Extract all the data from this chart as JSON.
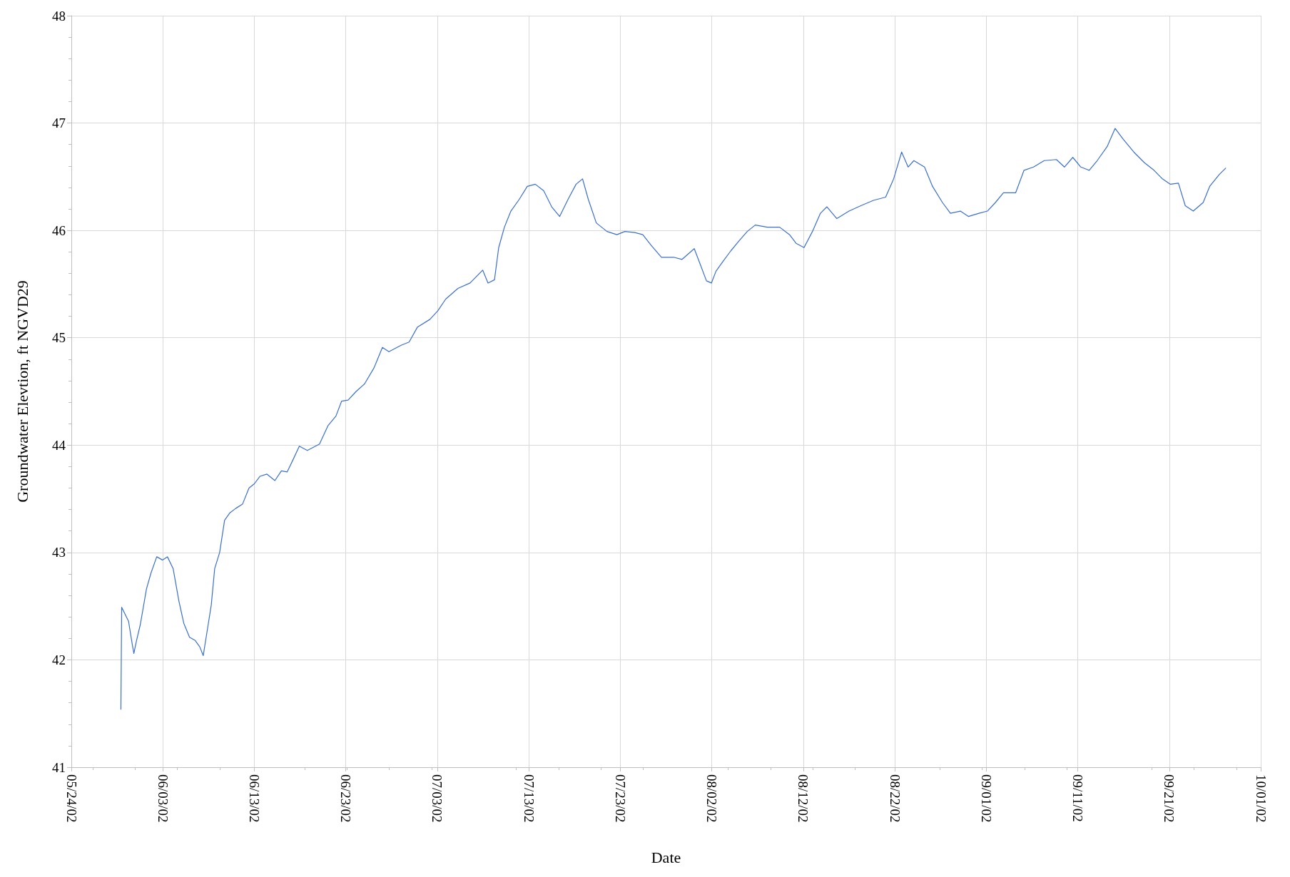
{
  "chart_data": {
    "type": "line",
    "xlabel": "Date",
    "ylabel": "Groundwater Elevtion, ft NGVD29",
    "x": [
      "--05-29T10:00",
      "--05-29T12:00",
      "--05-30T06:00",
      "--05-30T16:00",
      "--05-30T20:00",
      "--05-31T03:00",
      "--05-31T13:00",
      "--06-01T05:00",
      "--06-01T17:00",
      "--06-02T08:00",
      "--06-02T23:00",
      "--06-03T12:00",
      "--06-04T03:00",
      "--06-04T18:00",
      "--06-05T07:00",
      "--06-05T22:00",
      "--06-06T13:00",
      "--06-07T01:00",
      "--06-07T10:00",
      "--06-07T23:00",
      "--06-08T07:00",
      "--06-08T16:00",
      "--06-09T05:00",
      "--06-09T18:00",
      "--06-10T08:00",
      "--06-10T23:00",
      "--06-11T17:00",
      "--06-12T10:00",
      "--06-13T00:00",
      "--06-13T15:00",
      "--06-14T09:00",
      "--06-15T06:00",
      "--06-15T23:00",
      "--06-16T14:00",
      "--06-17T05:00",
      "--06-17T22:00",
      "--06-18T19:00",
      "--06-20T03:00",
      "--06-21T01:00",
      "--06-21T22:00",
      "--06-22T13:00",
      "--06-23T06:00",
      "--06-24T03:00",
      "--06-25T01:00",
      "--06-26T02:00",
      "--06-27T00:00",
      "--06-27T17:00",
      "--06-29T01:00",
      "--06-29T22:00",
      "--06-30T20:00",
      "--07-02T04:00",
      "--07-03T01:00",
      "--07-03T22:00",
      "--07-05T06:00",
      "--07-06T14:00",
      "--07-07T23:00",
      "--07-08T13:00",
      "--07-09T06:00",
      "--07-09T17:00",
      "--07-10T08:00",
      "--07-11T01:00",
      "--07-11T23:00",
      "--07-12T20:00",
      "--07-13T17:00",
      "--07-14T15:00",
      "--07-15T12:00",
      "--07-16T09:00",
      "--07-17T07:00",
      "--07-18T04:00",
      "--07-18T21:00",
      "--07-19T12:00",
      "--07-20T09:00",
      "--07-21T13:00",
      "--07-22T15:00",
      "--07-23T12:00",
      "--07-24T14:00",
      "--07-25T11:00",
      "--07-26T09:00",
      "--07-27T12:00",
      "--07-28T20:00",
      "--07-29T18:00",
      "--07-31T02:00",
      "--07-31T17:00",
      "--08-01T10:00",
      "--08-01T23:00",
      "--08-02T11:00",
      "--08-03T05:00",
      "--08-04T02:00",
      "--08-04T23:00",
      "--08-05T21:00",
      "--08-06T18:00",
      "--08-08T02:00",
      "--08-09T10:00",
      "--08-10T12:00",
      "--08-11T05:00",
      "--08-12T02:00",
      "--08-13T00:00",
      "--08-13T21:00",
      "--08-14T14:00",
      "--08-15T16:00",
      "--08-17T00:00",
      "--08-18T07:00",
      "--08-19T16:00",
      "--08-21T00:00",
      "--08-21T21:00",
      "--08-22T18:00",
      "--08-23T11:00",
      "--08-24T02:00",
      "--08-25T06:00",
      "--08-26T03:00",
      "--08-27T05:00",
      "--08-28T02:00",
      "--08-29T04:00",
      "--08-30T01:00",
      "--08-31T05:00",
      "--09-01T03:00",
      "--09-02T00:00",
      "--09-02T21:00",
      "--09-04T05:00",
      "--09-05T03:00",
      "--09-06T04:00",
      "--09-07T08:00",
      "--09-08T16:00",
      "--09-09T13:00",
      "--09-10T11:00",
      "--09-11T08:00",
      "--09-12T06:00",
      "--09-13T03:00",
      "--09-14T05:00",
      "--09-15T02:00",
      "--09-15T23:00",
      "--09-17T03:00",
      "--09-18T07:00",
      "--09-19T08:00",
      "--09-20T06:00",
      "--09-21T03:00",
      "--09-22T00:00",
      "--09-22T18:00",
      "--09-23T15:00",
      "--09-24T17:00",
      "--09-25T10:00",
      "--09-26T11:00",
      "--09-27T04:00"
    ],
    "series": [
      {
        "color": "#3a6fd0",
        "values": [
          41.54,
          42.49,
          42.36,
          42.14,
          42.06,
          42.18,
          42.33,
          42.66,
          42.81,
          42.96,
          42.93,
          42.96,
          42.85,
          42.55,
          42.34,
          42.21,
          42.18,
          42.12,
          42.04,
          42.33,
          42.51,
          42.85,
          43.0,
          43.3,
          43.37,
          43.41,
          43.45,
          43.6,
          43.64,
          43.71,
          43.73,
          43.67,
          43.76,
          43.75,
          43.86,
          43.99,
          43.95,
          44.01,
          44.18,
          44.27,
          44.41,
          44.42,
          44.5,
          44.57,
          44.72,
          44.91,
          44.87,
          44.93,
          44.96,
          45.1,
          45.17,
          45.25,
          45.36,
          45.46,
          45.51,
          45.63,
          45.51,
          45.54,
          45.84,
          46.03,
          46.18,
          46.29,
          46.41,
          46.43,
          46.37,
          46.22,
          46.13,
          46.29,
          46.43,
          46.48,
          46.29,
          46.07,
          45.99,
          45.96,
          45.99,
          45.98,
          45.96,
          45.86,
          45.75,
          45.75,
          45.73,
          45.83,
          45.69,
          45.53,
          45.51,
          45.62,
          45.71,
          45.81,
          45.9,
          45.99,
          46.05,
          46.03,
          46.03,
          45.96,
          45.88,
          45.84,
          45.99,
          46.16,
          46.22,
          46.11,
          46.18,
          46.23,
          46.28,
          46.31,
          46.48,
          46.73,
          46.59,
          46.65,
          46.59,
          46.41,
          46.26,
          46.16,
          46.18,
          46.13,
          46.16,
          46.18,
          46.26,
          46.35,
          46.35,
          46.56,
          46.59,
          46.65,
          46.66,
          46.59,
          46.68,
          46.59,
          46.56,
          46.65,
          46.78,
          46.95,
          46.85,
          46.73,
          46.63,
          46.56,
          46.48,
          46.43,
          46.44,
          46.23,
          46.18,
          46.26,
          46.41,
          46.52,
          46.58
        ]
      }
    ],
    "xlim": [
      "--05-24",
      "--10-01"
    ],
    "xticks": [
      {
        "value": "--05-24",
        "label": "05/24/02"
      },
      {
        "value": "--06-03",
        "label": "06/03/02"
      },
      {
        "value": "--06-13",
        "label": "06/13/02"
      },
      {
        "value": "--06-23",
        "label": "06/23/02"
      },
      {
        "value": "--07-03",
        "label": "07/03/02"
      },
      {
        "value": "--07-13",
        "label": "07/13/02"
      },
      {
        "value": "--07-23",
        "label": "07/23/02"
      },
      {
        "value": "--08-02",
        "label": "08/02/02"
      },
      {
        "value": "--08-12",
        "label": "08/12/02"
      },
      {
        "value": "--08-22",
        "label": "08/22/02"
      },
      {
        "value": "--09-01",
        "label": "09/01/02"
      },
      {
        "value": "--09-11",
        "label": "09/11/02"
      },
      {
        "value": "--09-21",
        "label": "09/21/02"
      },
      {
        "value": "--10-01",
        "label": "10/01/02"
      }
    ],
    "ylim": [
      41,
      48
    ],
    "yticks": [
      41,
      42,
      43,
      44,
      45,
      46,
      47,
      48
    ],
    "grid": true,
    "marker": "none",
    "line_style": "solid"
  }
}
